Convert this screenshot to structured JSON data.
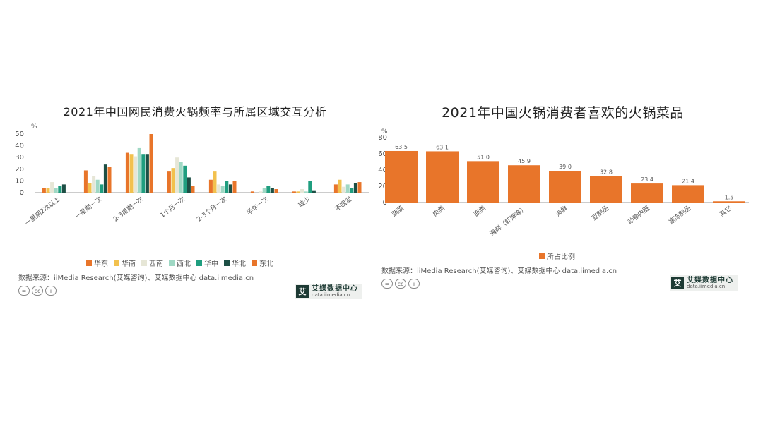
{
  "chart_data": [
    {
      "type": "bar",
      "title": "2021年中国网民消费火锅频率与所属区域交互分析",
      "ylabel": "%",
      "ylim": [
        0,
        50
      ],
      "yticks": [
        0,
        10,
        20,
        30,
        40,
        50
      ],
      "categories": [
        "一星期2次以上",
        "一星期一次",
        "2-3星期一次",
        "1个月一次",
        "2-3个月一次",
        "半年一次",
        "较少",
        "不固定"
      ],
      "series": [
        {
          "name": "华东",
          "color": "#e8752a",
          "values": [
            4,
            19,
            34,
            18,
            11,
            1,
            1,
            7
          ]
        },
        {
          "name": "华南",
          "color": "#f2c14e",
          "values": [
            4,
            8,
            33,
            21,
            18,
            0,
            1,
            11
          ]
        },
        {
          "name": "西南",
          "color": "#e6e6d6",
          "values": [
            9,
            14,
            31,
            30,
            7,
            1,
            3,
            5
          ]
        },
        {
          "name": "西北",
          "color": "#9fd8c4",
          "values": [
            4,
            11,
            38,
            26,
            6,
            4,
            1,
            7
          ]
        },
        {
          "name": "华中",
          "color": "#1f9e7f",
          "values": [
            6,
            7,
            33,
            23,
            10,
            6,
            10,
            4
          ]
        },
        {
          "name": "华北",
          "color": "#1d4f45",
          "values": [
            7,
            24,
            33,
            13,
            7,
            4,
            2,
            8
          ]
        },
        {
          "name": "东北",
          "color": "#e8752a",
          "values": [
            0,
            22,
            50,
            6,
            10,
            3,
            0,
            9
          ]
        }
      ]
    },
    {
      "type": "bar",
      "title": "2021年中国火锅消费者喜欢的火锅菜品",
      "ylabel": "%",
      "ylim": [
        0,
        80
      ],
      "yticks": [
        0,
        20,
        40,
        60,
        80
      ],
      "categories": [
        "蔬菜",
        "肉类",
        "面类",
        "海鲜（虾滑等）",
        "海鲜",
        "豆制品",
        "动物内脏",
        "速冻制品",
        "其它"
      ],
      "series": [
        {
          "name": "所占比例",
          "color": "#e8752a",
          "values": [
            63.5,
            63.1,
            51.0,
            45.9,
            39.0,
            32.8,
            23.4,
            21.4,
            1.5
          ]
        }
      ]
    }
  ],
  "left": {
    "source": "数据来源：iiMedia Research(艾媒咨询)、艾媒数据中心 data.iimedia.cn",
    "brand_name": "艾媒数据中心",
    "brand_url": "data.iimedia.cn",
    "brand_logo": "艾"
  },
  "right": {
    "source": "数据来源：iiMedia Research(艾媒咨询)、艾媒数据中心 data.iimedia.cn",
    "brand_name": "艾媒数据中心",
    "brand_url": "data.iimedia.cn",
    "brand_logo": "艾"
  },
  "icons": [
    "cc-equals-icon",
    "cc-icon",
    "cc-person-icon"
  ]
}
